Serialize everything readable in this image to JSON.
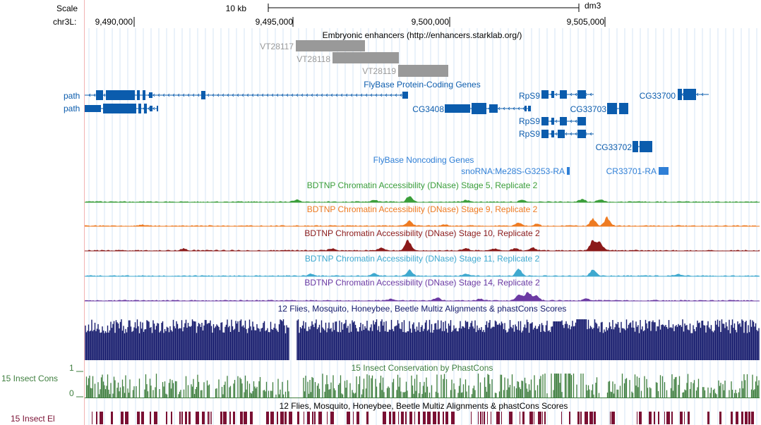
{
  "ruler": {
    "scale_label": "Scale",
    "scale_bar_text": "10 kb",
    "assembly": "dm3",
    "chrom_label": "chr3L:",
    "ticks": [
      "9,490,000",
      "9,495,000",
      "9,500,000",
      "9,505,000"
    ]
  },
  "enhancers": {
    "title": "Embryonic enhancers (http://enhancers.starklab.org/)",
    "color": "#999999",
    "items": [
      {
        "name": "VT28117"
      },
      {
        "name": "VT28118"
      },
      {
        "name": "VT28119"
      }
    ]
  },
  "protein_genes": {
    "title": "FlyBase Protein-Coding Genes",
    "color": "#0b5cad",
    "left_labels": [
      "path",
      "path"
    ],
    "labels": [
      "RpS9",
      "CG33700",
      "CG3408",
      "CG33703",
      "RpS9",
      "RpS9",
      "CG33702"
    ]
  },
  "noncoding_genes": {
    "title": "FlyBase Noncoding Genes",
    "color": "#2f7fd6",
    "labels": [
      "snoRNA:Me28S-G3253-RA",
      "CR33701-RA"
    ]
  },
  "dnase_tracks": [
    {
      "title": "BDTNP Chromatin Accessibility (DNase) Stage 5, Replicate 2",
      "color": "#3a9e3a"
    },
    {
      "title": "BDTNP Chromatin Accessibility (DNase) Stage 9, Replicate 2",
      "color": "#ee7b22"
    },
    {
      "title": "BDTNP Chromatin Accessibility (DNase) Stage 10, Replicate 2",
      "color": "#8b1a1a"
    },
    {
      "title": "BDTNP Chromatin Accessibility (DNase) Stage 11, Replicate 2",
      "color": "#3fa9cf"
    },
    {
      "title": "BDTNP Chromatin Accessibility (DNase) Stage 14, Replicate 2",
      "color": "#6b3aa3"
    }
  ],
  "multiz": {
    "title": "12 Flies, Mosquito, Honeybee, Beetle Multiz Alignments & phastCons Scores",
    "color": "#14196b"
  },
  "cons": {
    "left_label": "15 Insect Cons",
    "scale_max": "1",
    "scale_min": "0",
    "title": "15 Insect Conservation by PhastCons",
    "color": "#3f7f3f"
  },
  "elements": {
    "left_label": "15 Insect El",
    "title": "12 Flies, Mosquito, Honeybee, Beetle Multiz Alignments & phastCons Scores",
    "color": "#7a1033"
  }
}
